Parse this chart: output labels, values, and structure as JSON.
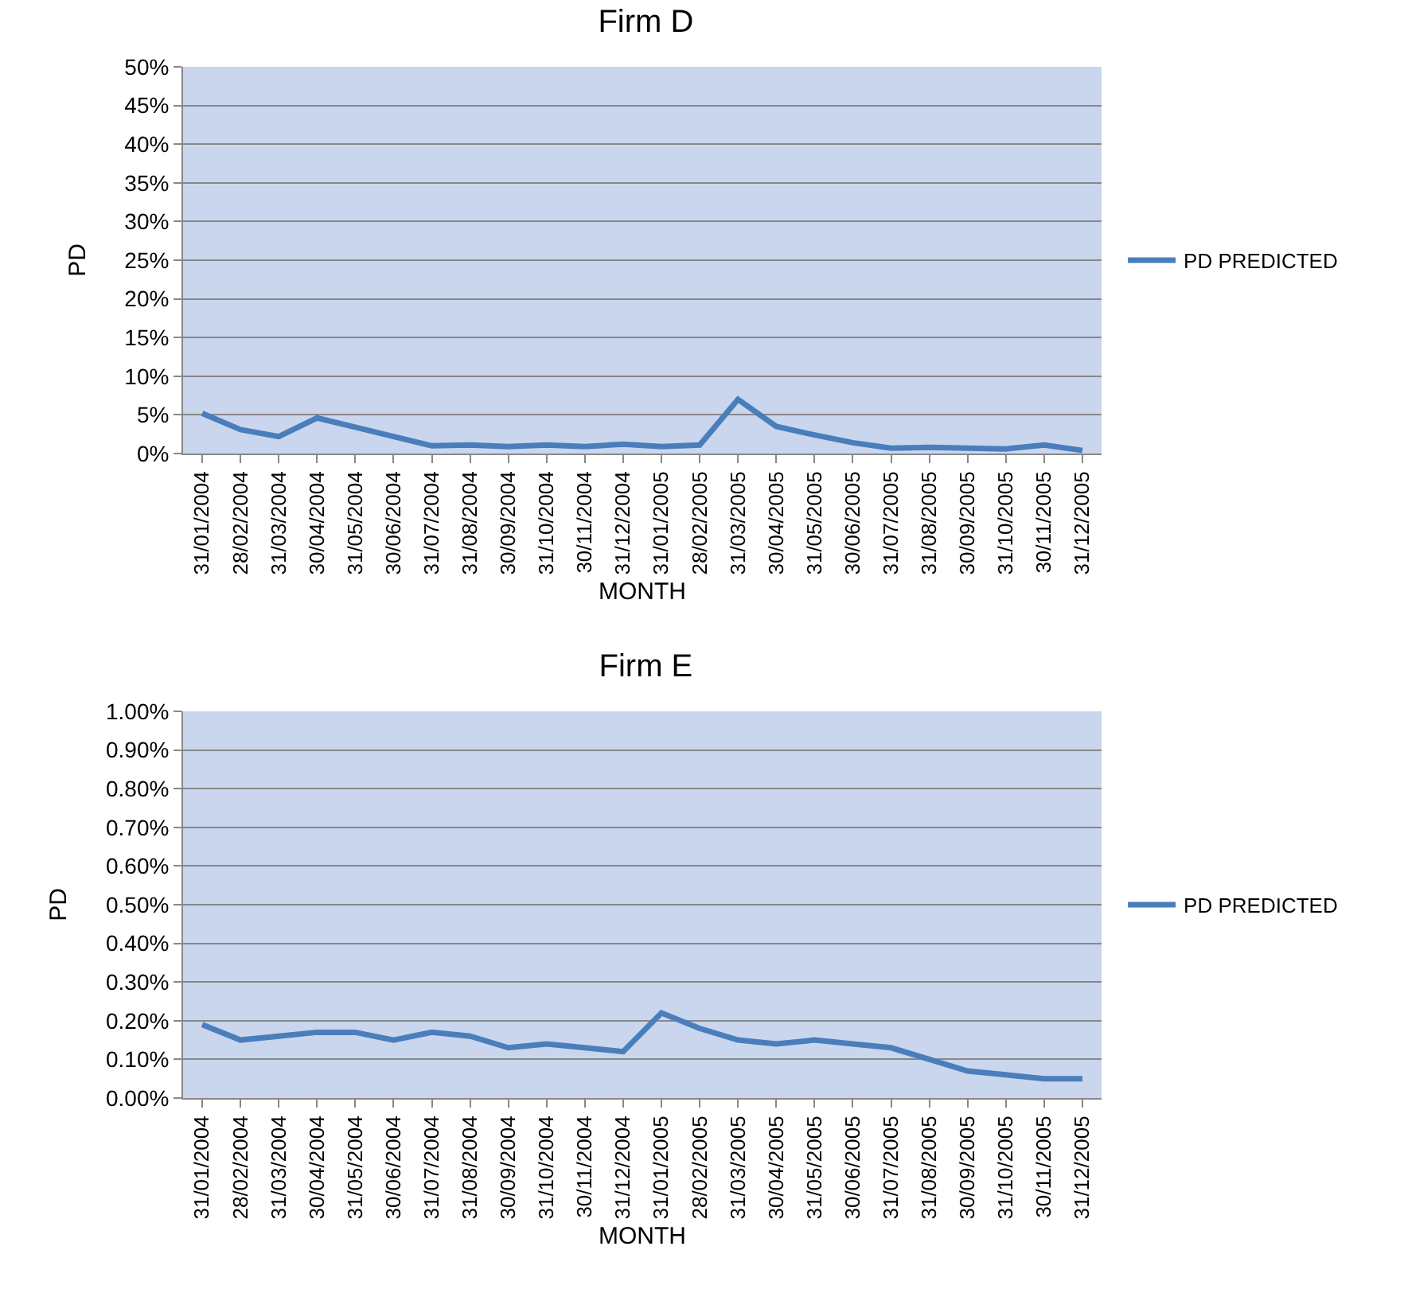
{
  "chart_data": [
    {
      "type": "line",
      "title": "Firm D",
      "xlabel": "MONTH",
      "ylabel": "PD",
      "categories": [
        "31/01/2004",
        "28/02/2004",
        "31/03/2004",
        "30/04/2004",
        "31/05/2004",
        "30/06/2004",
        "31/07/2004",
        "31/08/2004",
        "30/09/2004",
        "31/10/2004",
        "30/11/2004",
        "31/12/2004",
        "31/01/2005",
        "28/02/2005",
        "31/03/2005",
        "30/04/2005",
        "31/05/2005",
        "30/06/2005",
        "31/07/2005",
        "31/08/2005",
        "30/09/2005",
        "31/10/2005",
        "30/11/2005",
        "31/12/2005"
      ],
      "series": [
        {
          "name": "PD PREDICTED",
          "color": "#4a7ebb",
          "values": [
            5.2,
            3.1,
            2.2,
            4.6,
            3.4,
            2.2,
            1.0,
            1.1,
            0.9,
            1.1,
            0.9,
            1.2,
            0.9,
            1.1,
            7.0,
            3.5,
            2.4,
            1.4,
            0.7,
            0.8,
            0.7,
            0.6,
            1.1,
            0.4
          ]
        }
      ],
      "ylim": [
        0,
        50
      ],
      "yticks": [
        {
          "value": 0,
          "label": "0%"
        },
        {
          "value": 5,
          "label": "5%"
        },
        {
          "value": 10,
          "label": "10%"
        },
        {
          "value": 15,
          "label": "15%"
        },
        {
          "value": 20,
          "label": "20%"
        },
        {
          "value": 25,
          "label": "25%"
        },
        {
          "value": 30,
          "label": "30%"
        },
        {
          "value": 35,
          "label": "35%"
        },
        {
          "value": 40,
          "label": "40%"
        },
        {
          "value": 45,
          "label": "45%"
        },
        {
          "value": 50,
          "label": "50%"
        }
      ],
      "grid": "y",
      "legend": "right",
      "marker": "none",
      "line_style": "solid"
    },
    {
      "type": "line",
      "title": "Firm E",
      "xlabel": "MONTH",
      "ylabel": "PD",
      "categories": [
        "31/01/2004",
        "28/02/2004",
        "31/03/2004",
        "30/04/2004",
        "31/05/2004",
        "30/06/2004",
        "31/07/2004",
        "31/08/2004",
        "30/09/2004",
        "31/10/2004",
        "30/11/2004",
        "31/12/2004",
        "31/01/2005",
        "28/02/2005",
        "31/03/2005",
        "30/04/2005",
        "31/05/2005",
        "30/06/2005",
        "31/07/2005",
        "31/08/2005",
        "30/09/2005",
        "31/10/2005",
        "30/11/2005",
        "31/12/2005"
      ],
      "series": [
        {
          "name": "PD PREDICTED",
          "color": "#4a7ebb",
          "values": [
            0.19,
            0.15,
            0.16,
            0.17,
            0.17,
            0.15,
            0.17,
            0.16,
            0.13,
            0.14,
            0.13,
            0.12,
            0.22,
            0.18,
            0.15,
            0.14,
            0.15,
            0.14,
            0.13,
            0.1,
            0.07,
            0.06,
            0.05,
            0.05
          ]
        }
      ],
      "ylim": [
        0,
        1
      ],
      "yticks": [
        {
          "value": 0,
          "label": "0.00%"
        },
        {
          "value": 0.1,
          "label": "0.10%"
        },
        {
          "value": 0.2,
          "label": "0.20%"
        },
        {
          "value": 0.3,
          "label": "0.30%"
        },
        {
          "value": 0.4,
          "label": "0.40%"
        },
        {
          "value": 0.5,
          "label": "0.50%"
        },
        {
          "value": 0.6,
          "label": "0.60%"
        },
        {
          "value": 0.7,
          "label": "0.70%"
        },
        {
          "value": 0.8,
          "label": "0.80%"
        },
        {
          "value": 0.9,
          "label": "0.90%"
        },
        {
          "value": 1,
          "label": "1.00%"
        }
      ],
      "grid": "y",
      "legend": "right",
      "marker": "none",
      "line_style": "solid"
    }
  ]
}
